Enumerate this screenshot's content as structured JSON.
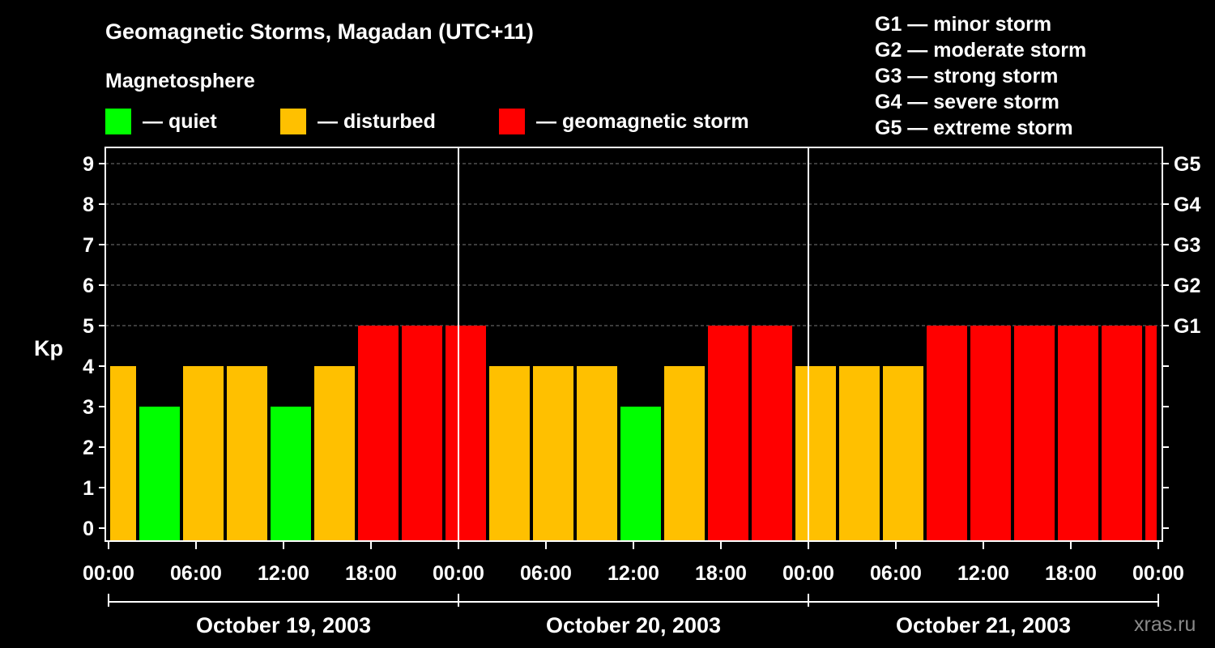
{
  "title": "Geomagnetic Storms, Magadan (UTC+11)",
  "magnetosphere_label": "Magnetosphere",
  "legend": [
    {
      "label": "— quiet",
      "color": "#00ff00"
    },
    {
      "label": "— disturbed",
      "color": "#ffc000"
    },
    {
      "label": "— geomagnetic storm",
      "color": "#ff0000"
    }
  ],
  "g_scale": [
    "G1 — minor storm",
    "G2 — moderate storm",
    "G3 — strong storm",
    "G4 — severe storm",
    "G5 — extreme storm"
  ],
  "watermark": "xras.ru",
  "chart_data": {
    "type": "bar",
    "ylabel": "Kp",
    "ylim": [
      0,
      9
    ],
    "yticks": [
      "0",
      "1",
      "2",
      "3",
      "4",
      "5",
      "6",
      "7",
      "8",
      "9"
    ],
    "right_ticks": [
      {
        "kp": 5,
        "label": "G1"
      },
      {
        "kp": 6,
        "label": "G2"
      },
      {
        "kp": 7,
        "label": "G3"
      },
      {
        "kp": 8,
        "label": "G4"
      },
      {
        "kp": 9,
        "label": "G5"
      }
    ],
    "x_hour_range": [
      0,
      72
    ],
    "xticks": [
      {
        "hour": 0,
        "label": "00:00"
      },
      {
        "hour": 6,
        "label": "06:00"
      },
      {
        "hour": 12,
        "label": "12:00"
      },
      {
        "hour": 18,
        "label": "18:00"
      },
      {
        "hour": 24,
        "label": "00:00"
      },
      {
        "hour": 30,
        "label": "06:00"
      },
      {
        "hour": 36,
        "label": "12:00"
      },
      {
        "hour": 42,
        "label": "18:00"
      },
      {
        "hour": 48,
        "label": "00:00"
      },
      {
        "hour": 54,
        "label": "06:00"
      },
      {
        "hour": 60,
        "label": "12:00"
      },
      {
        "hour": 66,
        "label": "18:00"
      },
      {
        "hour": 72,
        "label": "00:00"
      }
    ],
    "days": [
      {
        "label": "October 19, 2003",
        "start_hour": 0,
        "end_hour": 24
      },
      {
        "label": "October 20, 2003",
        "start_hour": 24,
        "end_hour": 48
      },
      {
        "label": "October 21, 2003",
        "start_hour": 48,
        "end_hour": 72
      }
    ],
    "colors": {
      "quiet": "#00ff00",
      "disturbed": "#ffc000",
      "storm": "#ff0000"
    },
    "bars": [
      {
        "start_hour": 0,
        "end_hour": 2,
        "kp": 4,
        "level": "disturbed"
      },
      {
        "start_hour": 2,
        "end_hour": 5,
        "kp": 3,
        "level": "quiet"
      },
      {
        "start_hour": 5,
        "end_hour": 8,
        "kp": 4,
        "level": "disturbed"
      },
      {
        "start_hour": 8,
        "end_hour": 11,
        "kp": 4,
        "level": "disturbed"
      },
      {
        "start_hour": 11,
        "end_hour": 14,
        "kp": 3,
        "level": "quiet"
      },
      {
        "start_hour": 14,
        "end_hour": 17,
        "kp": 4,
        "level": "disturbed"
      },
      {
        "start_hour": 17,
        "end_hour": 20,
        "kp": 5,
        "level": "storm"
      },
      {
        "start_hour": 20,
        "end_hour": 23,
        "kp": 5,
        "level": "storm"
      },
      {
        "start_hour": 23,
        "end_hour": 26,
        "kp": 5,
        "level": "storm"
      },
      {
        "start_hour": 26,
        "end_hour": 29,
        "kp": 4,
        "level": "disturbed"
      },
      {
        "start_hour": 29,
        "end_hour": 32,
        "kp": 4,
        "level": "disturbed"
      },
      {
        "start_hour": 32,
        "end_hour": 35,
        "kp": 4,
        "level": "disturbed"
      },
      {
        "start_hour": 35,
        "end_hour": 38,
        "kp": 3,
        "level": "quiet"
      },
      {
        "start_hour": 38,
        "end_hour": 41,
        "kp": 4,
        "level": "disturbed"
      },
      {
        "start_hour": 41,
        "end_hour": 44,
        "kp": 5,
        "level": "storm"
      },
      {
        "start_hour": 44,
        "end_hour": 47,
        "kp": 5,
        "level": "storm"
      },
      {
        "start_hour": 47,
        "end_hour": 50,
        "kp": 4,
        "level": "disturbed"
      },
      {
        "start_hour": 50,
        "end_hour": 53,
        "kp": 4,
        "level": "disturbed"
      },
      {
        "start_hour": 53,
        "end_hour": 56,
        "kp": 4,
        "level": "disturbed"
      },
      {
        "start_hour": 56,
        "end_hour": 59,
        "kp": 5,
        "level": "storm"
      },
      {
        "start_hour": 59,
        "end_hour": 62,
        "kp": 5,
        "level": "storm"
      },
      {
        "start_hour": 62,
        "end_hour": 65,
        "kp": 5,
        "level": "storm"
      },
      {
        "start_hour": 65,
        "end_hour": 68,
        "kp": 5,
        "level": "storm"
      },
      {
        "start_hour": 68,
        "end_hour": 71,
        "kp": 5,
        "level": "storm"
      },
      {
        "start_hour": 71,
        "end_hour": 72,
        "kp": 5,
        "level": "storm"
      }
    ]
  }
}
